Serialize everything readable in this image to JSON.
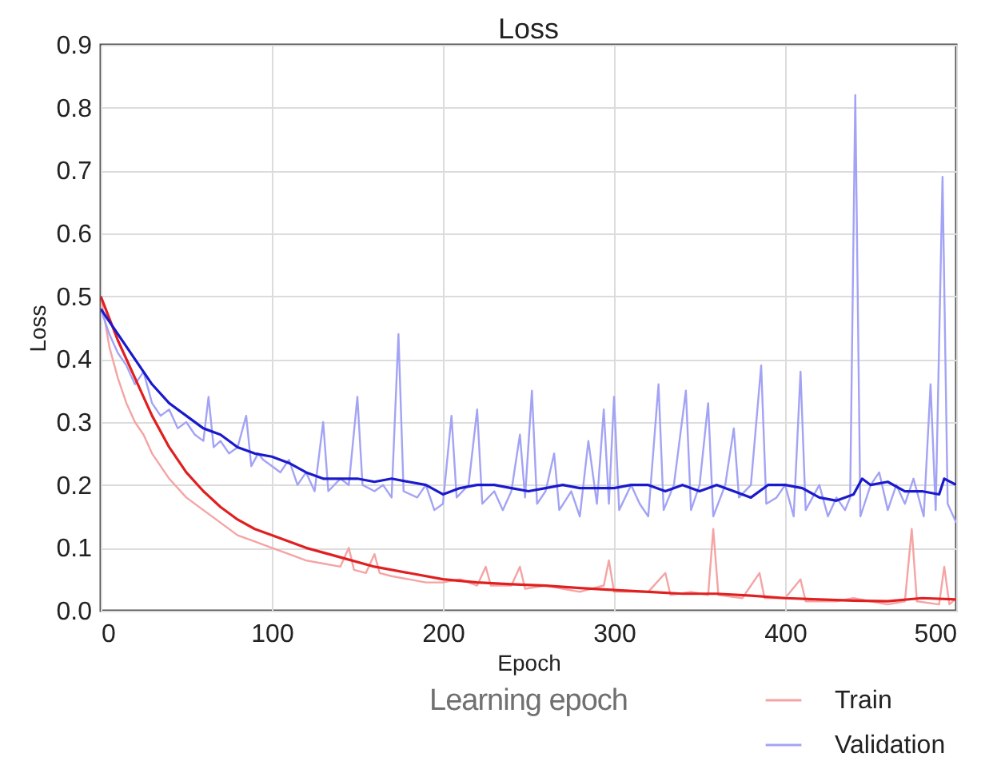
{
  "chart_data": {
    "type": "line",
    "title": "Loss",
    "xlabel": "Epoch",
    "ylabel": "Loss",
    "annotations": [
      "Learning epoch"
    ],
    "xlim": [
      0,
      500
    ],
    "xticks": [
      0,
      100,
      200,
      300,
      400,
      500
    ],
    "ylim": [
      0,
      0.9
    ],
    "yticks": [
      {
        "value": 0,
        "label": "0.0"
      },
      0.1,
      0.2,
      0.3,
      0.4,
      0.5,
      0.6,
      0.7,
      0.8,
      0.9
    ],
    "grid": true,
    "legend": "bottom right",
    "line_style": "solid",
    "series": [
      {
        "name": "Train",
        "color": "#f5a3a3",
        "x": [
          0,
          5,
          10,
          15,
          20,
          25,
          30,
          40,
          50,
          60,
          70,
          80,
          90,
          100,
          110,
          120,
          130,
          140,
          145,
          148,
          155,
          160,
          163,
          170,
          180,
          190,
          200,
          210,
          220,
          225,
          228,
          240,
          245,
          248,
          260,
          270,
          280,
          294,
          297,
          300,
          320,
          330,
          333,
          345,
          355,
          358,
          361,
          375,
          385,
          388,
          400,
          409,
          412,
          430,
          440,
          450,
          460,
          470,
          474,
          477,
          490,
          493,
          496,
          500
        ],
        "values": [
          0.5,
          0.42,
          0.37,
          0.33,
          0.3,
          0.28,
          0.25,
          0.21,
          0.18,
          0.16,
          0.14,
          0.12,
          0.11,
          0.1,
          0.09,
          0.08,
          0.075,
          0.07,
          0.1,
          0.065,
          0.06,
          0.09,
          0.06,
          0.055,
          0.05,
          0.045,
          0.045,
          0.05,
          0.04,
          0.07,
          0.04,
          0.04,
          0.07,
          0.035,
          0.04,
          0.035,
          0.03,
          0.04,
          0.08,
          0.03,
          0.03,
          0.06,
          0.025,
          0.03,
          0.025,
          0.13,
          0.025,
          0.02,
          0.06,
          0.02,
          0.02,
          0.05,
          0.015,
          0.015,
          0.02,
          0.015,
          0.01,
          0.015,
          0.13,
          0.015,
          0.01,
          0.07,
          0.01,
          0.02
        ]
      },
      {
        "name": "Validation",
        "color": "#a3a3f5",
        "x": [
          0,
          5,
          10,
          15,
          20,
          25,
          30,
          35,
          40,
          45,
          50,
          55,
          60,
          63,
          66,
          70,
          75,
          80,
          85,
          88,
          92,
          95,
          100,
          105,
          110,
          115,
          120,
          125,
          130,
          133,
          140,
          145,
          150,
          153,
          160,
          165,
          170,
          174,
          177,
          185,
          190,
          195,
          200,
          205,
          208,
          215,
          220,
          223,
          230,
          235,
          240,
          245,
          248,
          252,
          255,
          260,
          265,
          268,
          275,
          280,
          285,
          290,
          294,
          297,
          300,
          303,
          310,
          315,
          320,
          326,
          329,
          335,
          342,
          345,
          350,
          355,
          358,
          365,
          370,
          373,
          380,
          386,
          389,
          395,
          400,
          405,
          409,
          412,
          420,
          425,
          430,
          435,
          438,
          441,
          444,
          450,
          455,
          460,
          465,
          470,
          475,
          481,
          485,
          488,
          492,
          495,
          500
        ],
        "values": [
          0.48,
          0.44,
          0.41,
          0.39,
          0.36,
          0.38,
          0.33,
          0.31,
          0.32,
          0.29,
          0.3,
          0.28,
          0.27,
          0.34,
          0.26,
          0.27,
          0.25,
          0.26,
          0.31,
          0.23,
          0.25,
          0.24,
          0.23,
          0.22,
          0.24,
          0.2,
          0.22,
          0.19,
          0.3,
          0.19,
          0.21,
          0.2,
          0.34,
          0.2,
          0.19,
          0.2,
          0.18,
          0.44,
          0.19,
          0.18,
          0.2,
          0.16,
          0.17,
          0.31,
          0.18,
          0.2,
          0.32,
          0.17,
          0.19,
          0.16,
          0.19,
          0.28,
          0.18,
          0.35,
          0.17,
          0.19,
          0.25,
          0.16,
          0.19,
          0.15,
          0.27,
          0.17,
          0.32,
          0.17,
          0.34,
          0.16,
          0.2,
          0.17,
          0.15,
          0.36,
          0.16,
          0.2,
          0.35,
          0.16,
          0.2,
          0.33,
          0.15,
          0.2,
          0.29,
          0.18,
          0.2,
          0.39,
          0.17,
          0.18,
          0.2,
          0.15,
          0.38,
          0.16,
          0.2,
          0.15,
          0.18,
          0.16,
          0.18,
          0.82,
          0.15,
          0.2,
          0.22,
          0.16,
          0.2,
          0.17,
          0.21,
          0.15,
          0.36,
          0.16,
          0.69,
          0.17,
          0.14
        ]
      },
      {
        "color": "#e02020",
        "x": [
          0,
          10,
          20,
          30,
          40,
          50,
          60,
          70,
          80,
          90,
          100,
          120,
          140,
          160,
          180,
          200,
          220,
          240,
          260,
          280,
          300,
          320,
          340,
          360,
          380,
          400,
          420,
          440,
          460,
          480,
          500
        ],
        "values": [
          0.5,
          0.43,
          0.37,
          0.31,
          0.26,
          0.22,
          0.19,
          0.165,
          0.145,
          0.13,
          0.12,
          0.1,
          0.085,
          0.07,
          0.06,
          0.05,
          0.045,
          0.042,
          0.04,
          0.036,
          0.033,
          0.03,
          0.027,
          0.027,
          0.024,
          0.02,
          0.018,
          0.016,
          0.015,
          0.02,
          0.018
        ]
      },
      {
        "color": "#1a1acc",
        "x": [
          0,
          10,
          20,
          30,
          40,
          50,
          60,
          70,
          80,
          90,
          100,
          110,
          120,
          130,
          140,
          150,
          160,
          170,
          180,
          190,
          200,
          210,
          220,
          230,
          240,
          250,
          260,
          270,
          280,
          290,
          300,
          310,
          320,
          330,
          340,
          350,
          360,
          370,
          380,
          390,
          400,
          410,
          420,
          430,
          440,
          445,
          450,
          460,
          470,
          480,
          490,
          493,
          500
        ],
        "values": [
          0.48,
          0.44,
          0.4,
          0.36,
          0.33,
          0.31,
          0.29,
          0.28,
          0.26,
          0.25,
          0.245,
          0.235,
          0.22,
          0.21,
          0.21,
          0.21,
          0.205,
          0.21,
          0.205,
          0.2,
          0.185,
          0.195,
          0.2,
          0.2,
          0.195,
          0.19,
          0.195,
          0.2,
          0.195,
          0.195,
          0.195,
          0.2,
          0.2,
          0.19,
          0.2,
          0.19,
          0.2,
          0.19,
          0.18,
          0.2,
          0.2,
          0.195,
          0.18,
          0.175,
          0.185,
          0.21,
          0.2,
          0.205,
          0.19,
          0.19,
          0.185,
          0.21,
          0.2
        ]
      }
    ]
  }
}
